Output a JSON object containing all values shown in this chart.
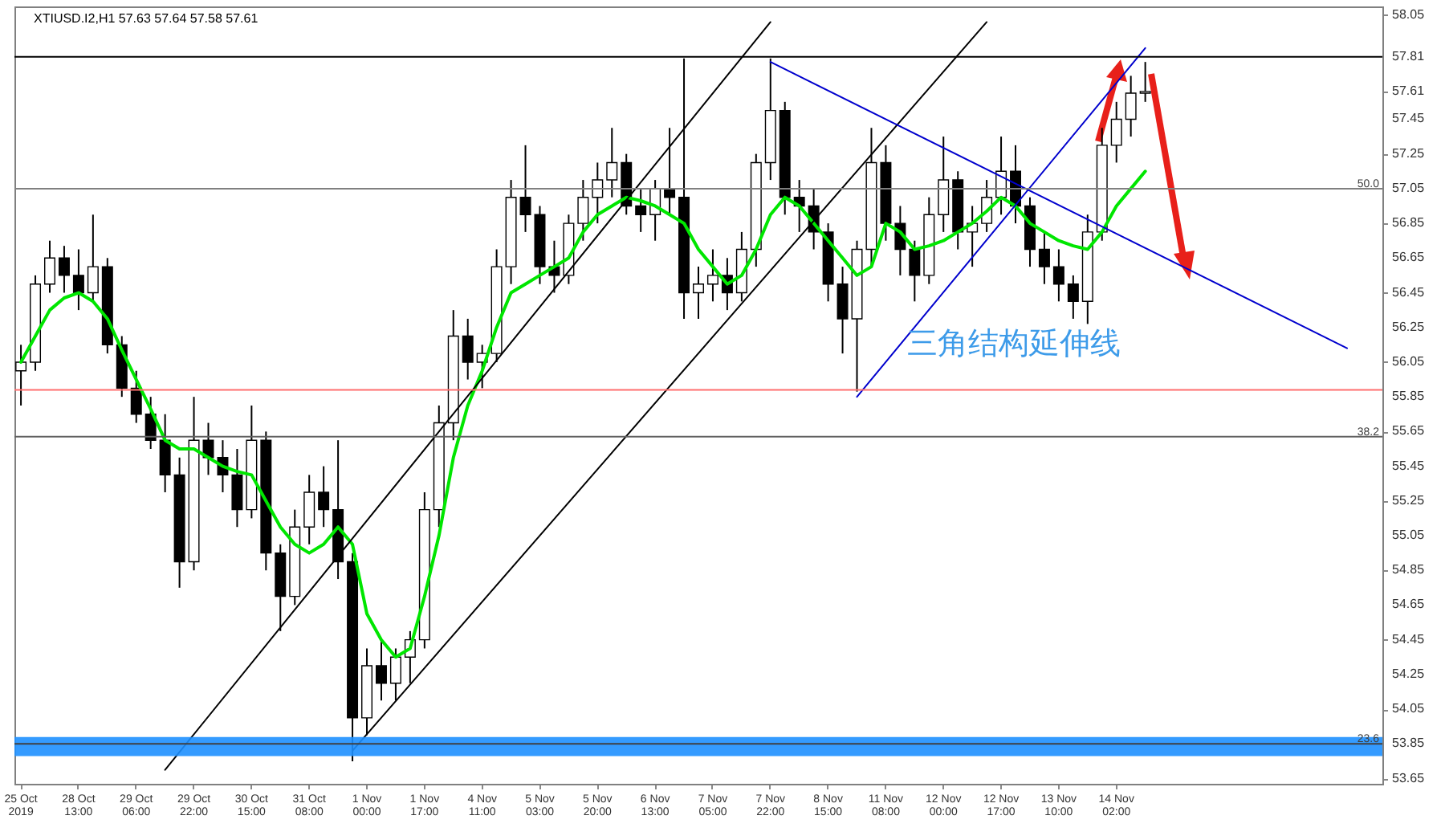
{
  "chart_data": {
    "type": "candlestick",
    "title": "XTIUSD.I2,H1  57.63 57.64 57.58 57.61",
    "color": "#000000",
    "categories": [
      "25 Oct 2019",
      null,
      null,
      null,
      "28 Oct 13:00",
      null,
      null,
      null,
      "29 Oct 06:00",
      null,
      null,
      null,
      "29 Oct 22:00",
      null,
      null,
      null,
      "30 Oct 15:00",
      null,
      null,
      null,
      "31 Oct 08:00",
      null,
      null,
      null,
      "1 Nov 00:00",
      null,
      null,
      null,
      "1 Nov 17:00",
      null,
      null,
      null,
      "4 Nov 11:00",
      null,
      null,
      null,
      "5 Nov 03:00",
      null,
      null,
      null,
      "5 Nov 20:00",
      null,
      null,
      null,
      "6 Nov 13:00",
      null,
      null,
      null,
      "7 Nov 05:00",
      null,
      null,
      null,
      "7 Nov 22:00",
      null,
      null,
      null,
      "8 Nov 15:00",
      null,
      null,
      null,
      "11 Nov 08:00",
      null,
      null,
      null,
      "12 Nov 00:00",
      null,
      null,
      null,
      "12 Nov 17:00",
      null,
      null,
      null,
      "13 Nov 10:00",
      null,
      null,
      null,
      "14 Nov 02:00",
      null,
      null,
      null,
      null,
      null,
      null,
      null,
      null,
      null,
      null,
      null,
      null,
      null,
      null,
      null,
      null,
      null,
      null
    ],
    "ohlc": [
      [
        56.0,
        56.15,
        55.8,
        56.05
      ],
      [
        56.05,
        56.55,
        56.0,
        56.5
      ],
      [
        56.5,
        56.75,
        56.45,
        56.65
      ],
      [
        56.65,
        56.72,
        56.45,
        56.55
      ],
      [
        56.55,
        56.7,
        56.35,
        56.45
      ],
      [
        56.45,
        56.9,
        56.4,
        56.6
      ],
      [
        56.6,
        56.65,
        56.1,
        56.15
      ],
      [
        56.15,
        56.2,
        55.85,
        55.9
      ],
      [
        55.9,
        56.0,
        55.7,
        55.75
      ],
      [
        55.75,
        55.85,
        55.55,
        55.6
      ],
      [
        55.6,
        55.75,
        55.3,
        55.4
      ],
      [
        55.4,
        55.5,
        54.75,
        54.9
      ],
      [
        54.9,
        55.85,
        54.85,
        55.6
      ],
      [
        55.6,
        55.7,
        55.4,
        55.5
      ],
      [
        55.5,
        55.6,
        55.3,
        55.4
      ],
      [
        55.4,
        55.55,
        55.1,
        55.2
      ],
      [
        55.2,
        55.8,
        55.15,
        55.6
      ],
      [
        55.6,
        55.65,
        54.85,
        54.95
      ],
      [
        54.95,
        55.0,
        54.5,
        54.7
      ],
      [
        54.7,
        55.2,
        54.65,
        55.1
      ],
      [
        55.1,
        55.4,
        55.0,
        55.3
      ],
      [
        55.3,
        55.45,
        55.1,
        55.2
      ],
      [
        55.2,
        55.6,
        54.8,
        54.9
      ],
      [
        54.9,
        54.95,
        53.75,
        54.0
      ],
      [
        54.0,
        54.4,
        53.9,
        54.3
      ],
      [
        54.3,
        54.45,
        54.1,
        54.2
      ],
      [
        54.2,
        54.4,
        54.1,
        54.35
      ],
      [
        54.35,
        54.5,
        54.2,
        54.45
      ],
      [
        54.45,
        55.3,
        54.4,
        55.2
      ],
      [
        55.2,
        55.8,
        55.1,
        55.7
      ],
      [
        55.7,
        56.35,
        55.6,
        56.2
      ],
      [
        56.2,
        56.3,
        55.95,
        56.05
      ],
      [
        56.05,
        56.15,
        55.9,
        56.1
      ],
      [
        56.1,
        56.7,
        56.05,
        56.6
      ],
      [
        56.6,
        57.1,
        56.5,
        57.0
      ],
      [
        57.0,
        57.3,
        56.8,
        56.9
      ],
      [
        56.9,
        56.95,
        56.5,
        56.6
      ],
      [
        56.6,
        56.75,
        56.45,
        56.55
      ],
      [
        56.55,
        56.9,
        56.5,
        56.85
      ],
      [
        56.85,
        57.1,
        56.75,
        57.0
      ],
      [
        57.0,
        57.2,
        56.85,
        57.1
      ],
      [
        57.1,
        57.4,
        57.0,
        57.2
      ],
      [
        57.2,
        57.25,
        56.9,
        56.95
      ],
      [
        56.95,
        57.05,
        56.8,
        56.9
      ],
      [
        56.9,
        57.1,
        56.75,
        57.05
      ],
      [
        57.05,
        57.4,
        56.9,
        57.0
      ],
      [
        57.0,
        57.8,
        56.3,
        56.45
      ],
      [
        56.45,
        56.6,
        56.3,
        56.5
      ],
      [
        56.5,
        56.7,
        56.4,
        56.55
      ],
      [
        56.55,
        56.65,
        56.35,
        56.45
      ],
      [
        56.45,
        56.8,
        56.4,
        56.7
      ],
      [
        56.7,
        57.25,
        56.6,
        57.2
      ],
      [
        57.2,
        57.8,
        57.1,
        57.5
      ],
      [
        57.5,
        57.55,
        56.9,
        57.0
      ],
      [
        57.0,
        57.1,
        56.8,
        56.95
      ],
      [
        56.95,
        57.05,
        56.7,
        56.8
      ],
      [
        56.8,
        56.85,
        56.4,
        56.5
      ],
      [
        56.5,
        56.6,
        56.1,
        56.3
      ],
      [
        56.3,
        56.75,
        55.88,
        56.7
      ],
      [
        56.7,
        57.4,
        56.6,
        57.2
      ],
      [
        57.2,
        57.3,
        56.75,
        56.85
      ],
      [
        56.85,
        56.95,
        56.55,
        56.7
      ],
      [
        56.7,
        56.75,
        56.4,
        56.55
      ],
      [
        56.55,
        57.0,
        56.5,
        56.9
      ],
      [
        56.9,
        57.35,
        56.8,
        57.1
      ],
      [
        57.1,
        57.15,
        56.7,
        56.8
      ],
      [
        56.8,
        56.95,
        56.6,
        56.85
      ],
      [
        56.85,
        57.1,
        56.8,
        57.0
      ],
      [
        57.0,
        57.35,
        56.9,
        57.15
      ],
      [
        57.15,
        57.3,
        56.85,
        56.95
      ],
      [
        56.95,
        57.0,
        56.6,
        56.7
      ],
      [
        56.7,
        56.8,
        56.5,
        56.6
      ],
      [
        56.6,
        56.7,
        56.4,
        56.5
      ],
      [
        56.5,
        56.55,
        56.3,
        56.4
      ],
      [
        56.4,
        56.9,
        56.27,
        56.8
      ],
      [
        56.8,
        57.4,
        56.75,
        57.3
      ],
      [
        57.3,
        57.55,
        57.2,
        57.45
      ],
      [
        57.45,
        57.7,
        57.35,
        57.6
      ],
      [
        57.6,
        57.78,
        57.55,
        57.61
      ],
      null,
      null,
      null,
      null,
      null,
      null,
      null,
      null,
      null,
      null,
      null,
      null,
      null,
      null,
      null,
      null
    ],
    "colors": [
      "#ffffff",
      "#ffffff",
      "#ffffff",
      "#000000",
      "#000000",
      "#ffffff",
      "#000000",
      "#000000",
      "#000000",
      "#000000",
      "#000000",
      "#000000",
      "#ffffff",
      "#000000",
      "#000000",
      "#000000",
      "#ffffff",
      "#000000",
      "#000000",
      "#ffffff",
      "#ffffff",
      "#000000",
      "#000000",
      "#000000",
      "#ffffff",
      "#000000",
      "#ffffff",
      "#ffffff",
      "#ffffff",
      "#ffffff",
      "#ffffff",
      "#000000",
      "#ffffff",
      "#ffffff",
      "#ffffff",
      "#000000",
      "#000000",
      "#000000",
      "#ffffff",
      "#ffffff",
      "#ffffff",
      "#ffffff",
      "#000000",
      "#000000",
      "#ffffff",
      "#000000",
      "#000000",
      "#ffffff",
      "#ffffff",
      "#000000",
      "#ffffff",
      "#ffffff",
      "#ffffff",
      "#000000",
      "#000000",
      "#000000",
      "#000000",
      "#000000",
      "#ffffff",
      "#ffffff",
      "#000000",
      "#000000",
      "#000000",
      "#ffffff",
      "#ffffff",
      "#000000",
      "#ffffff",
      "#ffffff",
      "#ffffff",
      "#000000",
      "#000000",
      "#000000",
      "#000000",
      "#000000",
      "#ffffff",
      "#ffffff",
      "#ffffff",
      "#ffffff",
      "#ffffff",
      null,
      null,
      null,
      null,
      null,
      null,
      null,
      null,
      null,
      null,
      null,
      null,
      null,
      null,
      null,
      null
    ],
    "series": [
      {
        "type": "line",
        "color": "#00e600",
        "values": [
          56.05,
          56.2,
          56.35,
          56.42,
          56.45,
          56.4,
          56.3,
          56.12,
          55.95,
          55.78,
          55.6,
          55.55,
          55.55,
          55.5,
          55.45,
          55.42,
          55.4,
          55.25,
          55.1,
          55.0,
          54.95,
          55.0,
          55.1,
          55.0,
          54.6,
          54.45,
          54.35,
          54.4,
          54.7,
          55.05,
          55.5,
          55.8,
          56.0,
          56.25,
          56.45,
          56.5,
          56.55,
          56.6,
          56.65,
          56.8,
          56.9,
          56.95,
          57.0,
          56.98,
          56.95,
          56.9,
          56.85,
          56.7,
          56.6,
          56.5,
          56.55,
          56.7,
          56.9,
          57.0,
          56.95,
          56.85,
          56.75,
          56.65,
          56.55,
          56.6,
          56.85,
          56.8,
          56.7,
          56.72,
          56.75,
          56.8,
          56.85,
          56.92,
          57.0,
          56.95,
          56.85,
          56.8,
          56.75,
          56.72,
          56.7,
          56.8,
          56.95,
          57.05,
          57.15,
          null,
          null,
          null,
          null,
          null,
          null,
          null,
          null,
          null,
          null,
          null,
          null,
          null,
          null,
          null,
          null
        ]
      },
      {
        "type": "line",
        "color": "#000000",
        "values": [
          null,
          null,
          null,
          null,
          null,
          null,
          null,
          null,
          null,
          null,
          53.7,
          null,
          null,
          null,
          null,
          null,
          null,
          null,
          null,
          null,
          null,
          null,
          null,
          null,
          null,
          null,
          null,
          null,
          null,
          null,
          null,
          null,
          null,
          null,
          null,
          null,
          null,
          null,
          null,
          null,
          null,
          null,
          null,
          null,
          null,
          null,
          null,
          null,
          null,
          null,
          null,
          null,
          58.01,
          null,
          null,
          null,
          null,
          null,
          null,
          null,
          null,
          null,
          null,
          null,
          null,
          null,
          null,
          null,
          null,
          null,
          null,
          null,
          null,
          null,
          null,
          null,
          null,
          null,
          null,
          null,
          null,
          null,
          null,
          null,
          null,
          null,
          null,
          null,
          null,
          null,
          null,
          null,
          null,
          null,
          null
        ]
      },
      {
        "type": "line",
        "color": "#000000",
        "values": [
          null,
          null,
          null,
          null,
          null,
          null,
          null,
          null,
          null,
          null,
          null,
          null,
          null,
          null,
          null,
          null,
          null,
          null,
          null,
          null,
          null,
          null,
          null,
          53.81,
          null,
          null,
          null,
          null,
          null,
          null,
          null,
          null,
          null,
          null,
          null,
          null,
          null,
          null,
          null,
          null,
          null,
          null,
          null,
          null,
          null,
          null,
          null,
          null,
          null,
          null,
          null,
          null,
          null,
          null,
          null,
          null,
          null,
          null,
          null,
          null,
          null,
          null,
          null,
          null,
          null,
          null,
          null,
          58.01,
          null,
          null,
          null,
          null,
          null,
          null,
          null,
          null,
          null,
          null,
          null,
          null,
          null,
          null,
          null,
          null,
          null,
          null,
          null,
          null,
          null,
          null,
          null,
          null,
          null,
          null,
          null
        ]
      },
      {
        "type": "line",
        "color": "#0000cd",
        "values": [
          null,
          null,
          null,
          null,
          null,
          null,
          null,
          null,
          null,
          null,
          null,
          null,
          null,
          null,
          null,
          null,
          null,
          null,
          null,
          null,
          null,
          null,
          null,
          null,
          null,
          null,
          null,
          null,
          null,
          null,
          null,
          null,
          null,
          null,
          null,
          null,
          null,
          null,
          null,
          null,
          null,
          null,
          null,
          null,
          null,
          null,
          null,
          null,
          null,
          null,
          null,
          null,
          null,
          null,
          null,
          null,
          null,
          null,
          55.85,
          null,
          null,
          null,
          null,
          null,
          null,
          null,
          null,
          null,
          null,
          null,
          null,
          null,
          null,
          null,
          null,
          null,
          null,
          null,
          57.86,
          null,
          null,
          null,
          null,
          null,
          null,
          null,
          null,
          null,
          null,
          null,
          null,
          null,
          null,
          null,
          null
        ]
      },
      {
        "type": "line",
        "color": "#0000cd",
        "values": [
          null,
          null,
          null,
          null,
          null,
          null,
          null,
          null,
          null,
          null,
          null,
          null,
          null,
          null,
          null,
          null,
          null,
          null,
          null,
          null,
          null,
          null,
          null,
          null,
          null,
          null,
          null,
          null,
          null,
          null,
          null,
          null,
          null,
          null,
          null,
          null,
          null,
          null,
          null,
          null,
          null,
          null,
          null,
          null,
          null,
          null,
          null,
          null,
          null,
          null,
          null,
          null,
          57.78,
          null,
          null,
          null,
          null,
          null,
          null,
          null,
          null,
          null,
          null,
          null,
          null,
          null,
          null,
          null,
          null,
          null,
          null,
          null,
          null,
          null,
          null,
          null,
          null,
          null,
          null,
          null,
          null,
          null,
          null,
          null,
          null,
          null,
          null,
          null,
          null,
          null,
          null,
          null,
          56.13,
          null,
          null
        ]
      }
    ],
    "ylim": [
      53.62,
      58.1
    ],
    "yticks": [
      58.05,
      57.81,
      57.61,
      57.45,
      57.25,
      57.05,
      56.85,
      56.65,
      56.45,
      56.25,
      56.05,
      55.85,
      55.65,
      55.45,
      55.25,
      55.05,
      54.85,
      54.65,
      54.45,
      54.25,
      54.05,
      53.85,
      53.65
    ],
    "ref_lines": [
      {
        "axis": "y",
        "value": 57.81,
        "color": "#000000"
      },
      {
        "axis": "y",
        "value": 57.05,
        "color": "#808080"
      },
      {
        "axis": "y",
        "value": 55.89,
        "color": "#ff6f6f"
      },
      {
        "axis": "y",
        "value": 55.62,
        "color": "#606060"
      },
      {
        "axis": "y",
        "value": 53.85,
        "color": "#404040"
      }
    ],
    "bands": [
      {
        "axis": "y",
        "from": 53.78,
        "to": 53.89,
        "color": "#1e90ff"
      }
    ],
    "annotations": [
      "三角结构延伸线",
      {
        "text": "50.0",
        "y": 57.05
      },
      {
        "text": "38.2",
        "y": 55.62
      },
      {
        "text": "23.6",
        "y": 53.85
      }
    ],
    "grid": false
  }
}
